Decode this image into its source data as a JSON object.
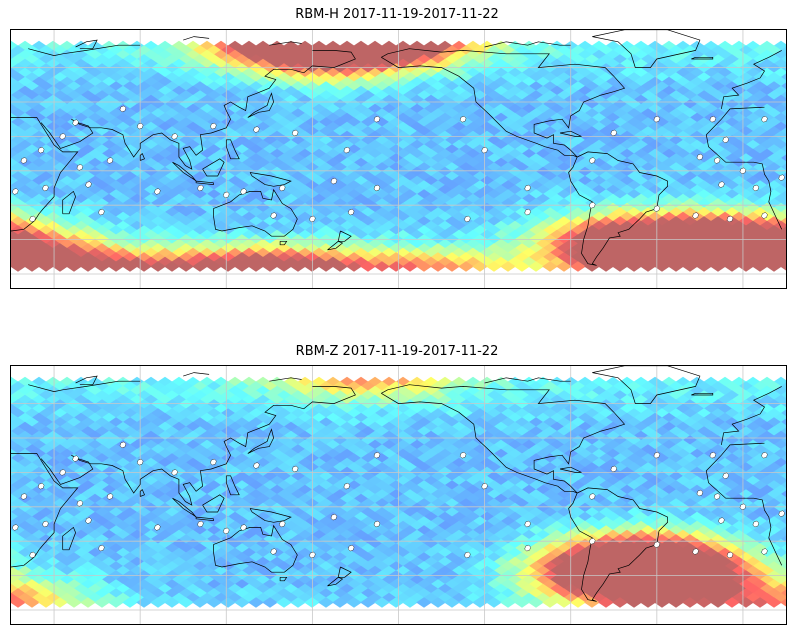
{
  "panels": [
    {
      "title": "RBM-H 2017-11-19-2017-11-22",
      "colormap": "jet",
      "hotspots": [
        {
          "lon": 150,
          "lat": 80,
          "strength": 0.95
        },
        {
          "lon": -160,
          "lat": 80,
          "strength": 0.85
        },
        {
          "lon": 170,
          "lat": 70,
          "strength": 0.7
        },
        {
          "lon": -30,
          "lat": -55,
          "strength": 1.0
        },
        {
          "lon": -55,
          "lat": -42,
          "strength": 0.85
        },
        {
          "lon": 0,
          "lat": -62,
          "strength": 0.95
        },
        {
          "lon": -10,
          "lat": -40,
          "strength": 0.55
        },
        {
          "lon": 60,
          "lat": -62,
          "strength": 0.8
        },
        {
          "lon": 120,
          "lat": -62,
          "strength": 0.7
        },
        {
          "lon": 160,
          "lat": -62,
          "strength": 0.7
        },
        {
          "lon": -140,
          "lat": -62,
          "strength": 0.55
        },
        {
          "lon": 15,
          "lat": -45,
          "strength": 0.55
        }
      ]
    },
    {
      "title": "RBM-Z 2017-11-19-2017-11-22",
      "colormap": "jet",
      "hotspots": [
        {
          "lon": -45,
          "lat": -32,
          "strength": 0.95
        },
        {
          "lon": -60,
          "lat": -40,
          "strength": 0.7
        },
        {
          "lon": -30,
          "lat": -45,
          "strength": 0.6
        },
        {
          "lon": 20,
          "lat": -58,
          "strength": 0.45
        },
        {
          "lon": 170,
          "lat": 80,
          "strength": 0.3
        },
        {
          "lon": -160,
          "lat": 78,
          "strength": 0.25
        }
      ]
    }
  ],
  "stations": [
    [
      -14,
      30
    ],
    [
      -8,
      18
    ],
    [
      10,
      30
    ],
    [
      34,
      12
    ],
    [
      50,
      28
    ],
    [
      72,
      36
    ],
    [
      80,
      26
    ],
    [
      -12,
      6
    ],
    [
      0,
      0
    ],
    [
      18,
      -4
    ],
    [
      26,
      6
    ],
    [
      44,
      20
    ],
    [
      52,
      2
    ],
    [
      66,
      6
    ],
    [
      96,
      20
    ],
    [
      114,
      26
    ],
    [
      134,
      24
    ],
    [
      152,
      22
    ],
    [
      176,
      12
    ],
    [
      -10,
      -8
    ],
    [
      6,
      -10
    ],
    [
      22,
      -12
    ],
    [
      36,
      -10
    ],
    [
      56,
      -8
    ],
    [
      88,
      -12
    ],
    [
      108,
      -10
    ],
    [
      128,
      -12
    ],
    [
      146,
      -10
    ],
    [
      170,
      -6
    ],
    [
      -22,
      -26
    ],
    [
      -6,
      -28
    ],
    [
      10,
      -26
    ],
    [
      30,
      -28
    ],
    [
      62,
      -24
    ],
    [
      120,
      -14
    ],
    [
      142,
      -26
    ],
    [
      160,
      -28
    ],
    [
      178,
      -24
    ],
    [
      -130,
      30
    ],
    [
      -120,
      12
    ],
    [
      -60,
      22
    ],
    [
      -40,
      30
    ],
    [
      -20,
      8
    ],
    [
      -70,
      6
    ],
    [
      -100,
      -10
    ],
    [
      -40,
      -22
    ],
    [
      -70,
      -20
    ],
    [
      -100,
      -24
    ],
    [
      -128,
      -28
    ],
    [
      -170,
      30
    ],
    [
      -170,
      -10
    ]
  ]
}
